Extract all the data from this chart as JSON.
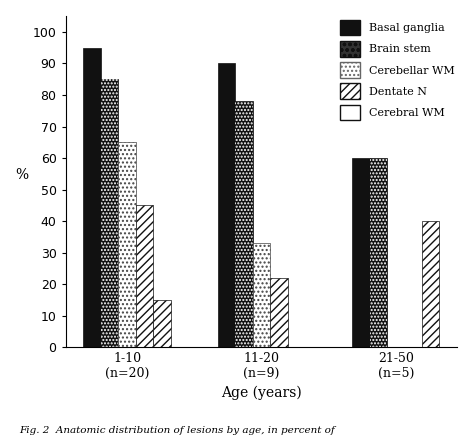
{
  "groups": [
    "1-10\n(n=20)",
    "11-20\n(n=9)",
    "21-50\n(n=5)"
  ],
  "series": {
    "Basal ganglia": [
      95,
      90,
      60
    ],
    "Brain stem": [
      85,
      78,
      60
    ],
    "Cerebellar WM": [
      65,
      33,
      0
    ],
    "Dentate N": [
      45,
      22,
      0
    ],
    "Cerebral WM": [
      15,
      0,
      40
    ]
  },
  "legend_labels": [
    "Basal ganglia",
    "Brain stem",
    "Cerebellar WM",
    "Dentate N",
    "Cerebral WM"
  ],
  "facecolors": [
    "#111111",
    "#111111",
    "#ffffff",
    "#ffffff",
    "#ffffff"
  ],
  "edgecolors": [
    "#111111",
    "#111111",
    "#444444",
    "#111111",
    "#111111"
  ],
  "hatch_patterns": [
    "",
    "....",
    "..",
    "////",
    "////"
  ],
  "legend_facecolors": [
    "#111111",
    "#111111",
    "#ffffff",
    "#ffffff",
    "#ffffff"
  ],
  "legend_edgecolors": [
    "#111111",
    "#111111",
    "#444444",
    "#111111",
    "#111111"
  ],
  "legend_hatches": [
    "",
    "....",
    "..",
    "////",
    "////"
  ],
  "xlabel": "Age (years)",
  "ylabel": "%",
  "ylim": [
    0,
    105
  ],
  "yticks": [
    0,
    10,
    20,
    30,
    40,
    50,
    60,
    70,
    80,
    90,
    100
  ],
  "bar_width": 0.13,
  "background_color": "#ffffff",
  "caption": "Fig. 2  Anatomic distribution of lesions by age, in percent of"
}
